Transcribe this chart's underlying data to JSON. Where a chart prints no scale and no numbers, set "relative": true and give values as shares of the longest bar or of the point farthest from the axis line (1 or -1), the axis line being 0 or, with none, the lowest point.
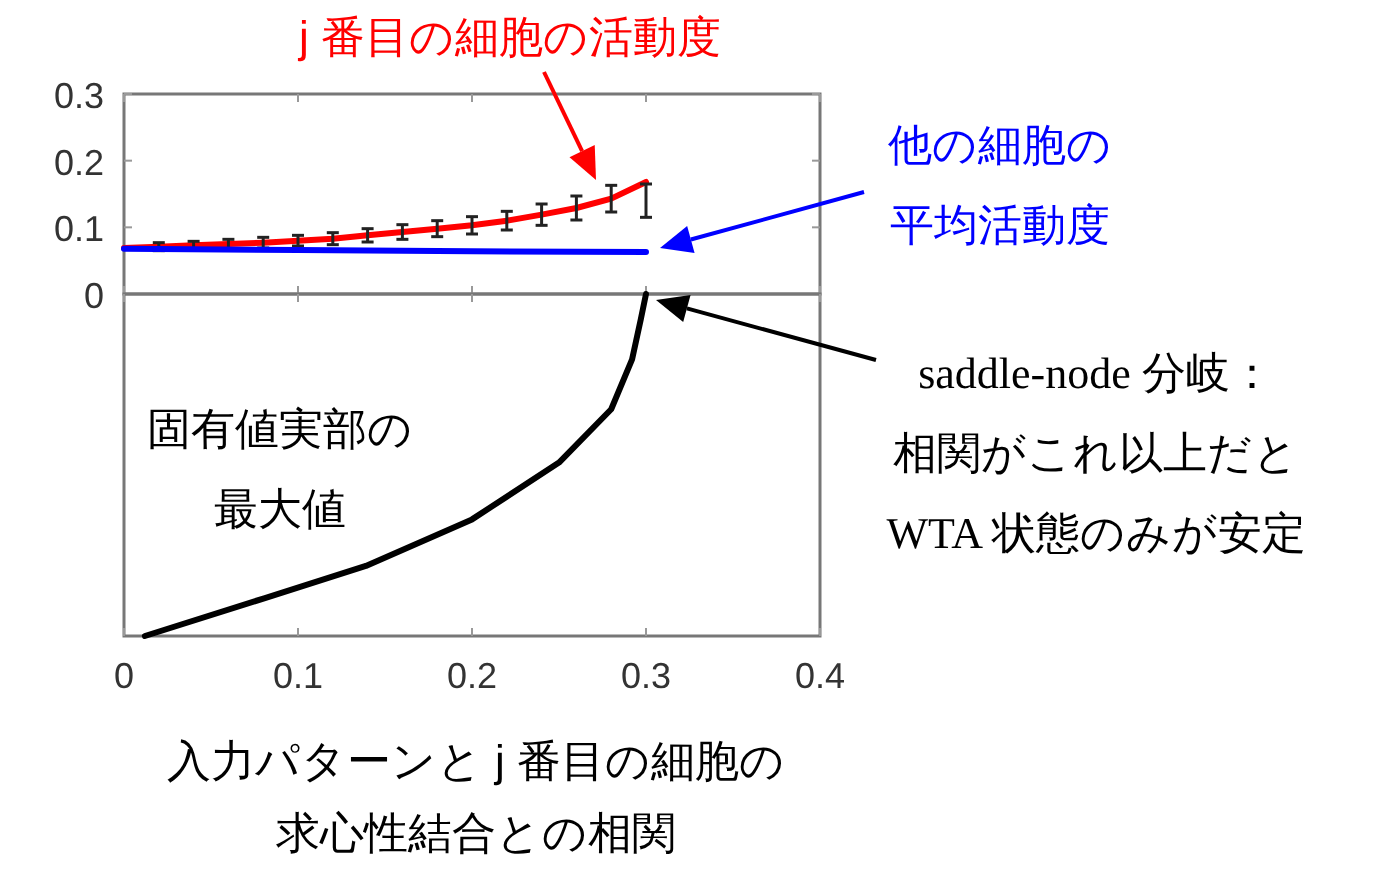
{
  "chart_data": [
    {
      "type": "line",
      "xlim": [
        0,
        0.4
      ],
      "xticks": [
        0,
        0.1,
        0.2,
        0.3,
        0.4
      ],
      "ylim": [
        0,
        0.3
      ],
      "yticks": [
        0,
        0.1,
        0.2,
        0.3
      ],
      "tick_labels": "y",
      "series": [
        {
          "color": "#ff0000",
          "x": [
            0,
            0.02,
            0.04,
            0.06,
            0.08,
            0.1,
            0.12,
            0.14,
            0.16,
            0.18,
            0.2,
            0.22,
            0.24,
            0.26,
            0.28,
            0.3
          ],
          "values": [
            0.069,
            0.071,
            0.073,
            0.075,
            0.077,
            0.08,
            0.083,
            0.088,
            0.093,
            0.098,
            0.103,
            0.11,
            0.119,
            0.129,
            0.143,
            0.168
          ],
          "errors": [
            null,
            0.006,
            0.006,
            0.007,
            0.008,
            0.008,
            0.009,
            0.01,
            0.011,
            0.012,
            0.013,
            0.014,
            0.016,
            0.018,
            0.02,
            [
              0.115,
              0.165
            ]
          ]
        },
        {
          "color": "#0000ff",
          "x": [
            0,
            0.1,
            0.2,
            0.3
          ],
          "values": [
            0.068,
            0.066,
            0.064,
            0.063
          ]
        }
      ],
      "annotations": [
        "j 番目の細胞の活動度",
        "他の細胞の平均活動度"
      ]
    },
    {
      "type": "line",
      "relative": true,
      "xlim": [
        0,
        0.4
      ],
      "xticks": [
        0,
        0.1,
        0.2,
        0.3,
        0.4
      ],
      "tick_labels": "x",
      "xlabel": "入力パターンと j 番目の細胞の求心性結合との相関",
      "series": [
        {
          "color": "#000000",
          "x": [
            0.012,
            0.081,
            0.139,
            0.2,
            0.25,
            0.28,
            0.292,
            0.297,
            0.3
          ],
          "values": [
            -1,
            -0.889,
            -0.795,
            -0.659,
            -0.493,
            -0.337,
            -0.191,
            -0.074,
            0
          ]
        }
      ],
      "annotations": [
        "saddle-node 分岐：相関がこれ以上だとWTA 状態のみが安定",
        "固有値実部の最大値"
      ]
    }
  ]
}
